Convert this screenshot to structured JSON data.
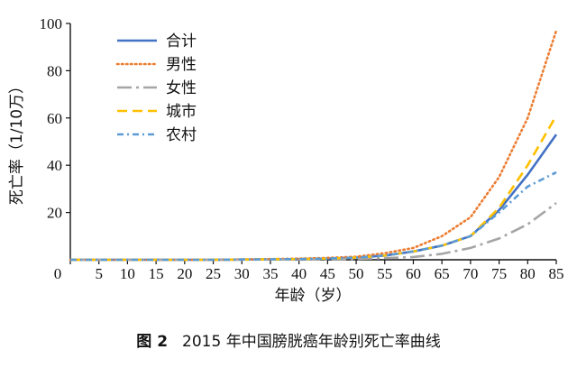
{
  "chart_data": {
    "type": "line",
    "xlabel": "年龄（岁）",
    "ylabel": "死亡率（1/10万）",
    "xlim": [
      0,
      85
    ],
    "ylim": [
      0,
      100
    ],
    "xticks": [
      0,
      5,
      10,
      15,
      20,
      25,
      30,
      35,
      40,
      45,
      50,
      55,
      60,
      65,
      70,
      75,
      80,
      85
    ],
    "yticks": [
      20,
      40,
      60,
      80,
      100
    ],
    "x": [
      0,
      5,
      10,
      15,
      20,
      25,
      30,
      35,
      40,
      45,
      50,
      55,
      60,
      65,
      70,
      75,
      80,
      85
    ],
    "legend": "top-left",
    "series": [
      {
        "name": "合计",
        "color": "#4472C4",
        "style": "solid",
        "values": [
          0,
          0,
          0,
          0,
          0,
          0,
          0.1,
          0.2,
          0.3,
          0.5,
          0.9,
          1.8,
          3.5,
          6,
          10,
          21,
          36,
          53
        ]
      },
      {
        "name": "男性",
        "color": "#ED7D31",
        "style": "dotted",
        "values": [
          0,
          0,
          0,
          0,
          0,
          0,
          0.1,
          0.3,
          0.5,
          0.8,
          1.3,
          2.8,
          5,
          10,
          18,
          35,
          60,
          97
        ]
      },
      {
        "name": "女性",
        "color": "#A5A5A5",
        "style": "dashdot-long",
        "values": [
          0,
          0,
          0,
          0,
          0,
          0,
          0,
          0.1,
          0.1,
          0.2,
          0.4,
          0.7,
          1.2,
          2.5,
          5,
          9,
          15,
          24
        ]
      },
      {
        "name": "城市",
        "color": "#FFC000",
        "style": "dashed",
        "values": [
          0,
          0,
          0,
          0,
          0,
          0,
          0.1,
          0.2,
          0.3,
          0.5,
          0.9,
          1.8,
          3.5,
          6,
          10,
          22,
          40,
          61
        ]
      },
      {
        "name": "农村",
        "color": "#5B9BD5",
        "style": "dashdot",
        "values": [
          0,
          0,
          0,
          0,
          0,
          0,
          0.1,
          0.2,
          0.3,
          0.5,
          0.9,
          1.8,
          3.5,
          6,
          10,
          20,
          31,
          37
        ]
      }
    ]
  },
  "caption": {
    "figure_no": "图 2",
    "text": "2015 年中国膀胱癌年龄别死亡率曲线"
  }
}
